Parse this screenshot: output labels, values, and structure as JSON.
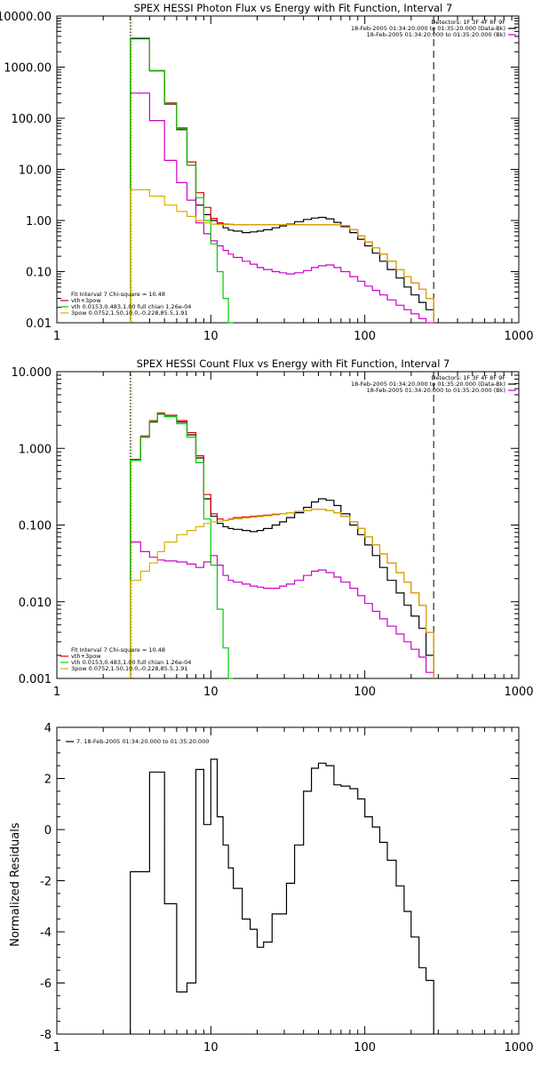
{
  "colors": {
    "black": "#000000",
    "red": "#e00000",
    "green": "#00cc00",
    "magenta": "#cc00cc",
    "yellow": "#d4b000"
  },
  "chart_data": [
    {
      "type": "line",
      "title": "SPEX HESSI Photon Flux vs Energy with Fit Function, Interval 7",
      "xscale": "log",
      "yscale": "log",
      "xlim": [
        1,
        1000
      ],
      "ylim": [
        0.01,
        10000
      ],
      "xticks": [
        1,
        10,
        100,
        1000
      ],
      "xtick_labels": [
        "1",
        "10",
        "100",
        "1000"
      ],
      "yticks": [
        0.01,
        0.1,
        1,
        10,
        100,
        1000,
        10000
      ],
      "ytick_labels": [
        "0.01",
        "0.10",
        "1.00",
        "10.00",
        "100.00",
        "1000.00",
        "10000.00"
      ],
      "vlines": [
        {
          "x": 3,
          "style": "dotted",
          "color": "black"
        },
        {
          "x": 3,
          "style": "dotted",
          "color": "yellow"
        },
        {
          "x": 280,
          "style": "dashed",
          "color": "black"
        }
      ],
      "legend_top_right": {
        "lines": [
          "Detectors: 1F 3F 4F 8F 9F",
          "18-Feb-2005 01:34:20.000 to 01:35:20.000 (Data-Bk)",
          "18-Feb-2005 01:34:20.000 to 01:35:20.000 (Bk)"
        ],
        "colors": [
          "",
          "black",
          "magenta"
        ]
      },
      "legend_bottom_left": {
        "lines": [
          "Fit Interval 7   Chi-square = 10.48",
          "vth+3pow",
          "vth 0.0153,0.483,1.00  full chian 1.26e-04",
          "3pow 0.0752,1.50,10.0,-0.228,85.5,1.91"
        ],
        "colors": [
          "",
          "red",
          "green",
          "yellow"
        ]
      },
      "edges": [
        3,
        4,
        5,
        6,
        7,
        8,
        9,
        10,
        11,
        12,
        13,
        14,
        16,
        18,
        20,
        22,
        25,
        28,
        31,
        35,
        40,
        45,
        50,
        56,
        63,
        70,
        80,
        90,
        100,
        112,
        125,
        140,
        160,
        180,
        200,
        225,
        250,
        280
      ],
      "series": [
        {
          "name": "",
          "color": "black",
          "values": [
            3600,
            850,
            190,
            60,
            12,
            2.0,
            1.3,
            1.0,
            0.85,
            0.72,
            0.65,
            0.62,
            0.58,
            0.6,
            0.62,
            0.66,
            0.72,
            0.78,
            0.85,
            0.95,
            1.05,
            1.12,
            1.15,
            1.08,
            0.92,
            0.76,
            0.58,
            0.43,
            0.32,
            0.23,
            0.16,
            0.11,
            0.075,
            0.05,
            0.035,
            0.025,
            0.018
          ]
        },
        {
          "name": "",
          "color": "magenta",
          "values": [
            310,
            90,
            15,
            5.5,
            2.5,
            0.9,
            0.55,
            0.4,
            0.32,
            0.26,
            0.22,
            0.19,
            0.16,
            0.14,
            0.12,
            0.11,
            0.1,
            0.095,
            0.09,
            0.095,
            0.105,
            0.12,
            0.13,
            0.135,
            0.12,
            0.1,
            0.08,
            0.065,
            0.052,
            0.043,
            0.035,
            0.028,
            0.022,
            0.018,
            0.015,
            0.012,
            0.01
          ]
        },
        {
          "name": "vth+3pow",
          "color": "red",
          "values": [
            3700,
            860,
            200,
            65,
            14,
            3.5,
            1.8,
            1.1,
            0.9,
            0.85,
            0.84,
            0.83,
            0.83,
            0.83,
            0.83,
            0.83,
            0.83,
            0.83,
            0.83,
            0.83,
            0.83,
            0.83,
            0.83,
            0.83,
            0.83,
            0.8,
            0.66,
            0.5,
            0.38,
            0.29,
            0.22,
            0.16,
            0.11,
            0.08,
            0.06,
            0.045,
            0.03
          ]
        },
        {
          "name": "vth 0.0153,0.483,1.00  full chian 1.26e-04",
          "color": "green",
          "values": [
            3700,
            860,
            195,
            62,
            12,
            2.8,
            1.0,
            0.35,
            0.1,
            0.03,
            0.009,
            0.003
          ]
        },
        {
          "name": "3pow 0.0752,1.50,10.0,-0.228,85.5,1.91",
          "color": "yellow",
          "values": [
            4.0,
            3.0,
            2.0,
            1.5,
            1.2,
            1.0,
            0.9,
            0.85,
            0.84,
            0.83,
            0.83,
            0.83,
            0.83,
            0.83,
            0.83,
            0.83,
            0.83,
            0.83,
            0.83,
            0.83,
            0.83,
            0.83,
            0.83,
            0.83,
            0.83,
            0.8,
            0.66,
            0.5,
            0.38,
            0.29,
            0.22,
            0.16,
            0.11,
            0.08,
            0.06,
            0.045,
            0.03
          ]
        }
      ]
    },
    {
      "type": "line",
      "title": "SPEX HESSI Count Flux vs Energy with Fit Function, Interval 7",
      "xscale": "log",
      "yscale": "log",
      "xlim": [
        1,
        1000
      ],
      "ylim": [
        0.001,
        10
      ],
      "xticks": [
        1,
        10,
        100,
        1000
      ],
      "xtick_labels": [
        "1",
        "10",
        "100",
        "1000"
      ],
      "yticks": [
        0.001,
        0.01,
        0.1,
        1,
        10
      ],
      "ytick_labels": [
        "0.001",
        "0.010",
        "0.100",
        "1.000",
        "10.000"
      ],
      "vlines": [
        {
          "x": 3,
          "style": "dotted",
          "color": "black"
        },
        {
          "x": 3,
          "style": "dotted",
          "color": "yellow"
        },
        {
          "x": 280,
          "style": "dashed",
          "color": "black"
        }
      ],
      "legend_top_right": {
        "lines": [
          "Detectors: 1F 3F 4F 8F 9F",
          "18-Feb-2005 01:34:20.000 to 01:35:20.000 (Data-Bk)",
          "18-Feb-2005 01:34:20.000 to 01:35:20.000 (Bk)"
        ],
        "colors": [
          "",
          "black",
          "magenta"
        ]
      },
      "legend_bottom_left": {
        "lines": [
          "Fit Interval 7   Chi-square = 10.48",
          "vth+3pow",
          "vth 0.0153,0.483,1.00  full chian 1.26e-04",
          "3pow 0.0752,1.50,10.0,-0.228,85.5,1.91"
        ],
        "colors": [
          "",
          "red",
          "green",
          "yellow"
        ]
      },
      "edges": [
        3,
        3.5,
        4,
        4.5,
        5,
        6,
        7,
        8,
        9,
        10,
        11,
        12,
        13,
        14,
        16,
        18,
        20,
        22,
        25,
        28,
        31,
        35,
        40,
        45,
        50,
        56,
        63,
        70,
        80,
        90,
        100,
        112,
        125,
        140,
        160,
        180,
        200,
        225,
        250,
        280
      ],
      "series": [
        {
          "name": "",
          "color": "black",
          "values": [
            0.7,
            1.4,
            2.2,
            2.8,
            2.6,
            2.2,
            1.5,
            0.75,
            0.22,
            0.13,
            0.105,
            0.095,
            0.09,
            0.088,
            0.085,
            0.082,
            0.085,
            0.09,
            0.1,
            0.11,
            0.125,
            0.145,
            0.17,
            0.2,
            0.22,
            0.21,
            0.18,
            0.14,
            0.1,
            0.075,
            0.055,
            0.04,
            0.028,
            0.019,
            0.013,
            0.009,
            0.0065,
            0.0045,
            0.002
          ]
        },
        {
          "name": "",
          "color": "magenta",
          "values": [
            0.06,
            0.045,
            0.038,
            0.035,
            0.034,
            0.033,
            0.031,
            0.028,
            0.033,
            0.04,
            0.03,
            0.022,
            0.019,
            0.018,
            0.017,
            0.016,
            0.0155,
            0.015,
            0.015,
            0.016,
            0.017,
            0.019,
            0.022,
            0.025,
            0.026,
            0.024,
            0.021,
            0.018,
            0.015,
            0.012,
            0.0095,
            0.0075,
            0.006,
            0.0048,
            0.0038,
            0.003,
            0.0024,
            0.0019,
            0.0012
          ]
        },
        {
          "name": "vth+3pow",
          "color": "red",
          "values": [
            0.72,
            1.45,
            2.3,
            2.9,
            2.7,
            2.3,
            1.6,
            0.8,
            0.25,
            0.14,
            0.12,
            0.115,
            0.12,
            0.125,
            0.128,
            0.13,
            0.132,
            0.135,
            0.138,
            0.14,
            0.145,
            0.15,
            0.155,
            0.16,
            0.16,
            0.155,
            0.145,
            0.13,
            0.11,
            0.09,
            0.07,
            0.055,
            0.042,
            0.032,
            0.024,
            0.018,
            0.013,
            0.009,
            0.004
          ]
        },
        {
          "name": "vth 0.0153,0.483,1.00  full chian 1.26e-04",
          "color": "green",
          "values": [
            0.7,
            1.4,
            2.25,
            2.85,
            2.6,
            2.1,
            1.4,
            0.65,
            0.12,
            0.03,
            0.008,
            0.0025,
            0.001
          ]
        },
        {
          "name": "3pow 0.0752,1.50,10.0,-0.228,85.5,1.91",
          "color": "yellow",
          "values": [
            0.019,
            0.025,
            0.032,
            0.045,
            0.06,
            0.075,
            0.085,
            0.095,
            0.105,
            0.11,
            0.112,
            0.115,
            0.118,
            0.12,
            0.123,
            0.126,
            0.129,
            0.132,
            0.136,
            0.14,
            0.145,
            0.15,
            0.155,
            0.16,
            0.16,
            0.155,
            0.145,
            0.13,
            0.11,
            0.09,
            0.07,
            0.055,
            0.042,
            0.032,
            0.024,
            0.018,
            0.013,
            0.009,
            0.004
          ]
        }
      ]
    },
    {
      "type": "line",
      "title": "",
      "ylabel": "Normalized Residuals",
      "xscale": "log",
      "yscale": "linear",
      "xlim": [
        1,
        1000
      ],
      "ylim": [
        -8,
        4
      ],
      "xticks": [
        1,
        10,
        100,
        1000
      ],
      "xtick_labels": [
        "1",
        "10",
        "100",
        "1000"
      ],
      "yticks": [
        -8,
        -6,
        -4,
        -2,
        0,
        2,
        4
      ],
      "ytick_labels": [
        "-8",
        "-6",
        "-4",
        "-2",
        "0",
        "2",
        "4"
      ],
      "legend_top_left": {
        "lines": [
          "7. 18-Feb-2005 01:34:20.000 to 01:35:20.000"
        ],
        "colors": [
          "black"
        ]
      },
      "edges": [
        3,
        4,
        5,
        6,
        7,
        8,
        9,
        10,
        11,
        12,
        13,
        14,
        16,
        18,
        20,
        22,
        25,
        28,
        31,
        35,
        40,
        45,
        50,
        56,
        63,
        70,
        80,
        90,
        100,
        112,
        125,
        140,
        160,
        180,
        200,
        225,
        250,
        280
      ],
      "series": [
        {
          "name": "7. 18-Feb-2005 01:34:20.000 to 01:35:20.000",
          "color": "black",
          "values": [
            -1.65,
            2.25,
            -2.9,
            -6.35,
            -6.0,
            2.35,
            0.2,
            2.75,
            0.5,
            -0.6,
            -1.5,
            -2.3,
            -3.5,
            -3.9,
            -4.6,
            -4.4,
            -3.3,
            -3.3,
            -2.1,
            -0.6,
            1.5,
            2.4,
            2.6,
            2.5,
            1.75,
            1.7,
            1.6,
            1.2,
            0.5,
            0.1,
            -0.5,
            -1.2,
            -2.2,
            -3.2,
            -4.2,
            -5.4,
            -5.9
          ]
        }
      ]
    }
  ]
}
